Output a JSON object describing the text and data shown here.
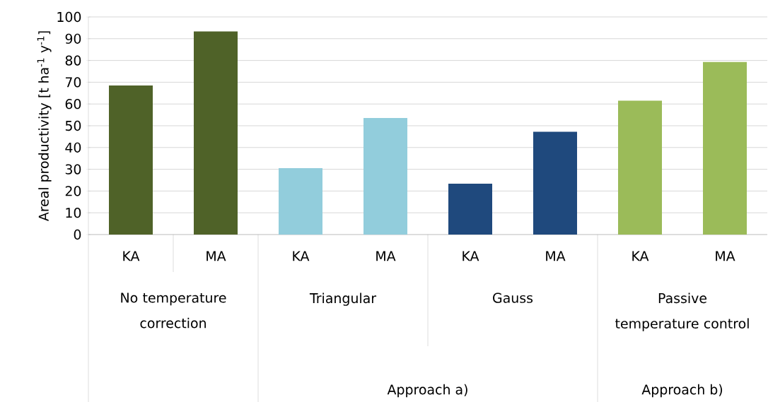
{
  "chart_data": {
    "type": "bar",
    "ylabel": "Areal productivity [t ha$^{-1}$ y$^{-1}$]",
    "categories": [
      "KA",
      "MA",
      "KA",
      "MA",
      "KA",
      "MA",
      "KA",
      "MA"
    ],
    "values": [
      68.5,
      93.3,
      30.5,
      53.6,
      23.4,
      47.2,
      61.5,
      79.3
    ],
    "colors": [
      "#4f6228",
      "#4f6228",
      "#92cddc",
      "#92cddc",
      "#1f497d",
      "#1f497d",
      "#9bbb59",
      "#9bbb59"
    ],
    "ylim": [
      0,
      100
    ],
    "yticks": [
      0,
      10,
      20,
      30,
      40,
      50,
      60,
      70,
      80,
      90,
      100
    ],
    "grid": "y",
    "annotations": [
      "No temperature correction",
      "Triangular",
      "Gauss",
      "Passive temperature control",
      "Approach a)",
      "Approach b)"
    ]
  }
}
